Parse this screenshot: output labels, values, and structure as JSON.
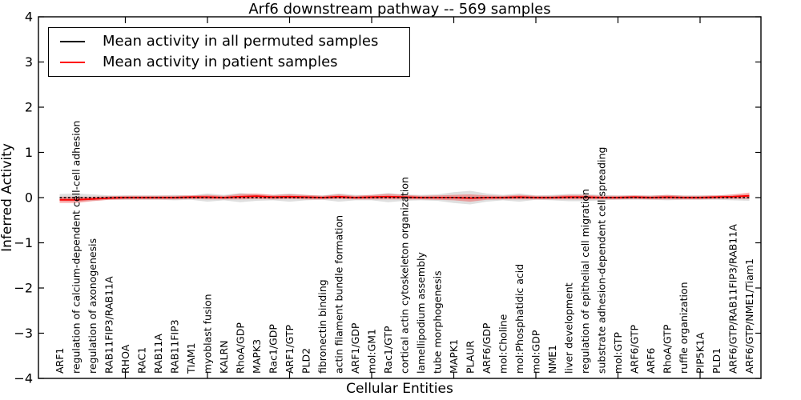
{
  "title": "Arf6 downstream pathway -- 569 samples",
  "axes": {
    "ylabel": "Inferred Activity",
    "xlabel": "Cellular Entities",
    "y_tick_labels": [
      "4",
      "3",
      "2",
      "1",
      "0",
      "−1",
      "−2",
      "−3",
      "−4"
    ],
    "ylim": [
      -4,
      4
    ]
  },
  "legend": {
    "items": [
      {
        "label": "Mean activity in all permuted samples",
        "color": "#000000"
      },
      {
        "label": "Mean activity in patient samples",
        "color": "#ff0000"
      }
    ]
  },
  "chart_data": {
    "type": "line",
    "title": "Arf6 downstream pathway -- 569 samples",
    "xlabel": "Cellular Entities",
    "ylabel": "Inferred Activity",
    "ylim": [
      -4,
      4
    ],
    "grid": false,
    "legend_position": "upper left",
    "x_major_ticks": [
      5,
      10,
      15,
      20,
      25,
      30,
      35,
      40
    ],
    "categories": [
      "ARF1",
      "regulation of calcium-dependent cell-cell adhesion",
      "regulation of axonogenesis",
      "RAB11FIP3/RAB11A",
      "RHOA",
      "RAC1",
      "RAB11A",
      "RAB11FIP3",
      "TIAM1",
      "myoblast fusion",
      "KALRN",
      "RhoA/GDP",
      "MAPK3",
      "Rac1/GDP",
      "ARF1/GTP",
      "PLD2",
      "fibronectin binding",
      "actin filament bundle formation",
      "ARF1/GDP",
      "mol:GM1",
      "Rac1/GTP",
      "cortical actin cytoskeleton organization",
      "lamellipodium assembly",
      "tube morphogenesis",
      "MAPK1",
      "PLAUR",
      "ARF6/GDP",
      "mol:Choline",
      "mol:Phosphatidic acid",
      "mol:GDP",
      "NME1",
      "liver development",
      "regulation of epithelial cell migration",
      "substrate adhesion-dependent cell spreading",
      "mol:GTP",
      "ARF6/GTP",
      "ARF6",
      "RhoA/GTP",
      "ruffle organization",
      "PIP5K1A",
      "PLD1",
      "ARF6/GTP/RAB11FIP3/RAB11A",
      "ARF6/GTP/NME1/Tiam1"
    ],
    "series": [
      {
        "name": "Mean activity in all permuted samples",
        "color": "#000000",
        "line_style": "dashed",
        "line_width": 1.4,
        "band_color": "#c9c9c9",
        "band_opacity": 0.6,
        "values": [
          0,
          0,
          0,
          0,
          0,
          0,
          0,
          0,
          0,
          0,
          0,
          0,
          0,
          0,
          0,
          0,
          0,
          0,
          0,
          0,
          0,
          0,
          0,
          0,
          0,
          0,
          0,
          0,
          0,
          0,
          0,
          0,
          0,
          0,
          0,
          0,
          0,
          0,
          0,
          0,
          0,
          0,
          0
        ],
        "band_halfwidth": [
          0.08,
          0.09,
          0.07,
          0.05,
          0.05,
          0.05,
          0.05,
          0.06,
          0.05,
          0.09,
          0.06,
          0.1,
          0.07,
          0.06,
          0.09,
          0.06,
          0.05,
          0.09,
          0.06,
          0.06,
          0.1,
          0.07,
          0.06,
          0.07,
          0.12,
          0.15,
          0.09,
          0.06,
          0.09,
          0.05,
          0.06,
          0.08,
          0.08,
          0.06,
          0.05,
          0.05,
          0.05,
          0.06,
          0.05,
          0.05,
          0.05,
          0.06,
          0.07
        ]
      },
      {
        "name": "Mean activity in patient samples",
        "color": "#ff0000",
        "line_style": "solid",
        "line_width": 2,
        "band_color": "#ff0000",
        "band_opacity": 0.3,
        "values": [
          -0.05,
          -0.05,
          -0.03,
          -0.01,
          0,
          0,
          0,
          0,
          0.01,
          0.01,
          0,
          0.02,
          0.03,
          0.01,
          0.02,
          0.01,
          0,
          0.02,
          0,
          0.01,
          0.02,
          0.01,
          0,
          0,
          0,
          -0.01,
          0,
          0,
          0.01,
          0,
          0,
          0.01,
          0.01,
          0,
          0,
          0.01,
          0,
          0.01,
          0,
          0,
          0.01,
          0.02,
          0.04
        ],
        "band_halfwidth": [
          0.07,
          0.07,
          0.05,
          0.04,
          0.04,
          0.04,
          0.04,
          0.04,
          0.04,
          0.05,
          0.04,
          0.06,
          0.06,
          0.05,
          0.05,
          0.05,
          0.04,
          0.05,
          0.04,
          0.05,
          0.06,
          0.05,
          0.04,
          0.05,
          0.06,
          0.08,
          0.05,
          0.04,
          0.05,
          0.04,
          0.04,
          0.05,
          0.05,
          0.04,
          0.04,
          0.04,
          0.04,
          0.05,
          0.04,
          0.04,
          0.04,
          0.05,
          0.07
        ]
      }
    ]
  }
}
